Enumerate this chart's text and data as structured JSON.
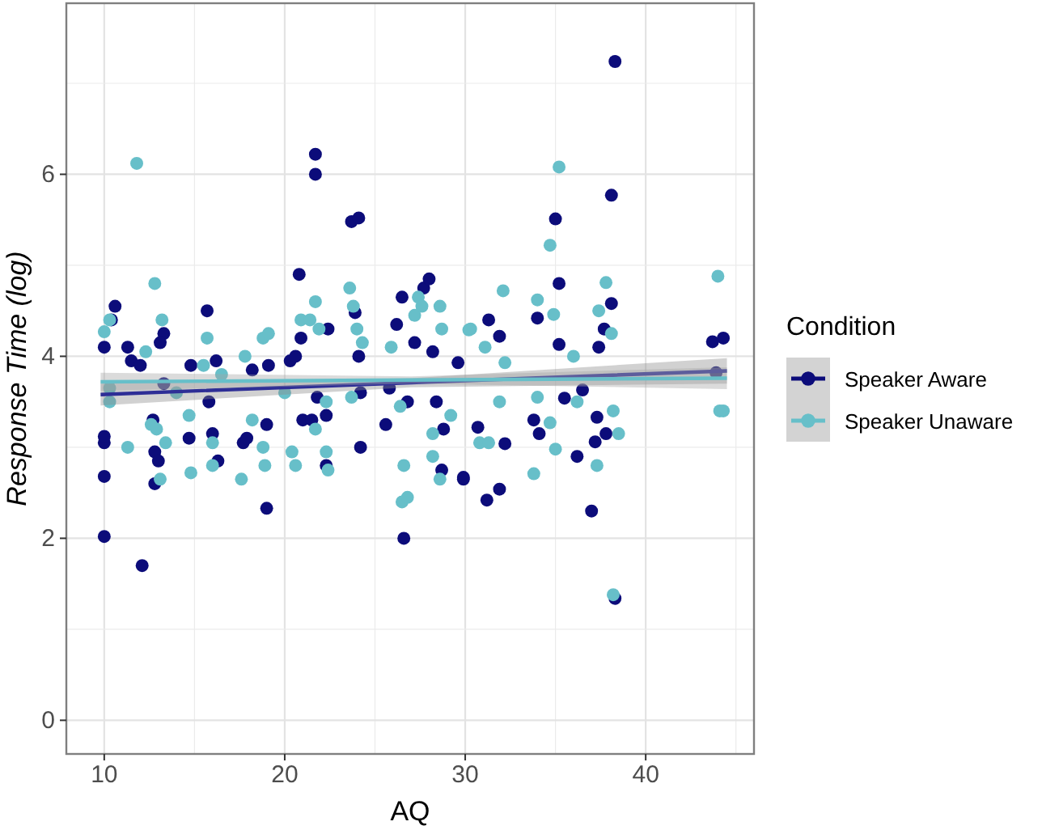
{
  "chart_data": {
    "type": "scatter",
    "xlabel": "AQ",
    "ylabel": "Response Time (log)",
    "legend_title": "Condition",
    "legend": "right",
    "grid": true,
    "marker": "circle",
    "xlim": [
      7.9,
      46
    ],
    "xticks": [
      10,
      20,
      30,
      40
    ],
    "ylim": [
      -0.37,
      7.88
    ],
    "yticks": [
      0,
      2,
      4,
      6
    ],
    "series": [
      {
        "name": "Speaker Aware",
        "color": "#0c0c7a",
        "x": [
          10,
          12.1,
          10,
          10,
          10,
          10.6,
          10.4,
          10,
          11.3,
          11.5,
          12,
          12.7,
          12.8,
          12.8,
          13,
          13.3,
          13.1,
          13.3,
          14.7,
          14.8,
          15.7,
          15.8,
          16.2,
          16.3,
          16,
          17.7,
          17.9,
          18.2,
          19,
          19,
          19.1,
          20.3,
          20.6,
          20.8,
          21,
          20.9,
          21.5,
          21.7,
          21.7,
          21.8,
          22.3,
          22.4,
          22.3,
          23.7,
          24.1,
          23.9,
          24.1,
          24.2,
          24.2,
          25.6,
          25.8,
          26.2,
          26.5,
          26.6,
          26.8,
          27.2,
          27.7,
          28,
          28.2,
          28.4,
          28.7,
          28.8,
          29.9,
          29.6,
          38.3,
          38.1,
          35,
          35.2,
          38.1,
          37,
          38.3,
          29.9,
          31.2,
          31.9,
          36.2,
          31.3,
          31.9,
          34,
          35.2,
          37.4,
          37.7,
          44.3,
          43.9,
          43.7,
          30.7,
          32.2,
          33.8,
          37.3,
          37.2,
          37.8,
          35.5,
          36.5,
          34.1
        ],
        "values": [
          2.02,
          1.7,
          2.68,
          3.05,
          3.12,
          4.55,
          4.4,
          4.1,
          4.1,
          3.95,
          3.9,
          3.3,
          2.95,
          2.6,
          2.85,
          4.25,
          4.15,
          3.7,
          3.1,
          3.9,
          4.5,
          3.5,
          3.95,
          2.85,
          3.15,
          3.05,
          3.1,
          3.85,
          2.33,
          3.25,
          3.9,
          3.95,
          4,
          4.9,
          3.3,
          4.2,
          3.3,
          6.22,
          6,
          3.55,
          3.35,
          4.3,
          2.8,
          5.48,
          5.52,
          4.48,
          4,
          3.6,
          3,
          3.25,
          3.65,
          4.35,
          4.65,
          2,
          3.5,
          4.15,
          4.75,
          4.85,
          4.05,
          3.5,
          2.75,
          3.2,
          2.65,
          3.93,
          7.24,
          5.77,
          5.51,
          4.8,
          4.58,
          2.3,
          1.34,
          2.67,
          2.42,
          2.54,
          2.9,
          4.4,
          4.22,
          4.42,
          4.13,
          4.1,
          4.3,
          4.2,
          3.82,
          4.16,
          3.22,
          3.04,
          3.3,
          3.33,
          3.06,
          3.15,
          3.54,
          3.63,
          3.15
        ]
      },
      {
        "name": "Speaker Unaware",
        "color": "#67bfc9",
        "x": [
          11.8,
          12.8,
          13.2,
          10.3,
          10,
          10.3,
          10.3,
          11.3,
          12.3,
          12.6,
          12.9,
          13.1,
          13.4,
          14,
          14.7,
          14.8,
          15.5,
          15.7,
          16,
          16,
          16.5,
          17.6,
          17.8,
          18.2,
          18.8,
          19.1,
          18.9,
          18.8,
          20,
          20.4,
          20.6,
          20.9,
          21.4,
          21.7,
          21.7,
          21.9,
          22.3,
          22.4,
          22.3,
          23.6,
          23.8,
          24,
          24.3,
          23.7,
          25.9,
          26.4,
          26.5,
          26.8,
          26.6,
          27.2,
          27.4,
          27.6,
          28.6,
          28.7,
          28.6,
          28.2,
          28.2,
          29.2,
          30.3,
          30.8,
          31.3,
          35.2,
          34.7,
          44,
          32.1,
          37.8,
          34,
          37.4,
          34.9,
          30.2,
          36,
          44.1,
          44.3,
          33.8,
          37.3,
          38.2,
          35,
          38.5,
          38.2,
          31.9,
          34,
          31.1,
          32.2,
          34.7,
          38.1,
          36.2
        ],
        "values": [
          6.12,
          4.8,
          4.4,
          4.4,
          4.27,
          3.5,
          3.65,
          3,
          4.05,
          3.25,
          3.2,
          2.65,
          3.05,
          3.6,
          3.35,
          2.72,
          3.9,
          4.2,
          3.05,
          2.8,
          3.8,
          2.65,
          4,
          3.3,
          4.2,
          4.25,
          2.8,
          3,
          3.6,
          2.95,
          2.8,
          4.4,
          4.4,
          4.6,
          3.2,
          4.3,
          2.95,
          2.75,
          3.5,
          4.75,
          4.55,
          4.3,
          4.15,
          3.55,
          4.1,
          3.45,
          2.4,
          2.45,
          2.8,
          4.45,
          4.65,
          4.55,
          4.55,
          4.3,
          2.65,
          3.15,
          2.9,
          3.35,
          4.3,
          3.05,
          3.05,
          6.08,
          5.22,
          4.88,
          4.72,
          4.81,
          4.62,
          4.5,
          4.46,
          4.29,
          4,
          3.4,
          3.4,
          2.71,
          2.8,
          1.38,
          2.98,
          3.15,
          3.4,
          3.5,
          3.55,
          4.1,
          3.93,
          3.27,
          4.25,
          3.5
        ]
      },
      {
        "type": "line",
        "marker": "none",
        "color": "#2e2e96",
        "x": [
          9.8,
          27,
          44.5
        ],
        "values": [
          3.58,
          3.71,
          3.84
        ],
        "lower": [
          3.46,
          3.66,
          3.7
        ],
        "upper": [
          3.7,
          3.76,
          3.98
        ]
      },
      {
        "type": "line",
        "marker": "none",
        "color": "#67bfc9",
        "x": [
          9.8,
          27,
          44.5
        ],
        "values": [
          3.72,
          3.74,
          3.76
        ],
        "lower": [
          3.62,
          3.7,
          3.64
        ],
        "upper": [
          3.82,
          3.78,
          3.88
        ]
      }
    ]
  }
}
